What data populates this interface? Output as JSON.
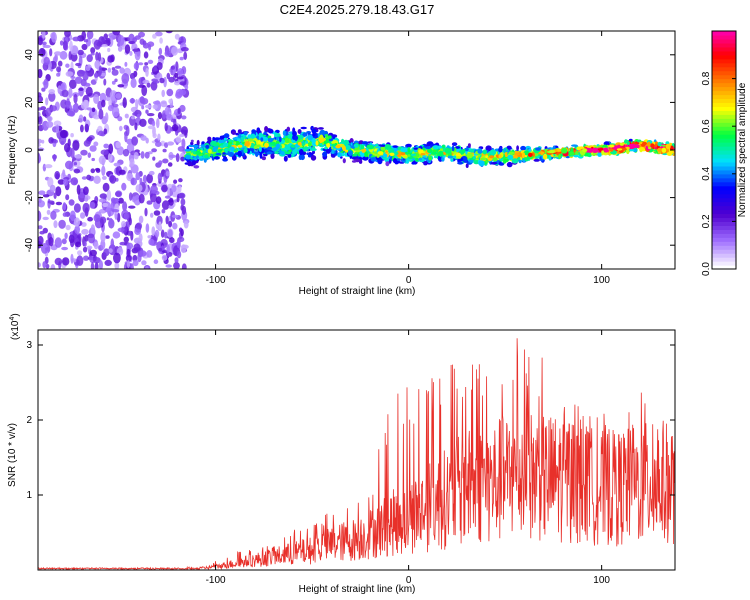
{
  "chart_data": [
    {
      "type": "heatmap",
      "title": "C2E4.2025.279.18.43.G17",
      "xlabel": "Height of straight line (km)",
      "ylabel": "Frequency (Hz)",
      "xlim": [
        -192,
        138
      ],
      "ylim": [
        -50,
        50
      ],
      "xticks": [
        -100,
        0,
        100
      ],
      "yticks": [
        -40,
        -20,
        0,
        20,
        40
      ],
      "colorbar": {
        "label": "Normalized spectral amplitude",
        "range": [
          0.0,
          1.0
        ],
        "ticks": [
          0.0,
          0.2,
          0.4,
          0.6,
          0.8
        ],
        "colors": [
          "#ffffff",
          "#a070ff",
          "#5000d0",
          "#0000ff",
          "#00e0ff",
          "#00ff40",
          "#ffff00",
          "#ff8000",
          "#ff0000",
          "#ff00c0"
        ]
      },
      "noise_region": {
        "x_range": [
          -192,
          -115
        ],
        "y_range": [
          -50,
          50
        ],
        "amplitude": [
          0.1,
          0.4
        ]
      },
      "signal_trace": {
        "x": [
          -115,
          -100,
          -80,
          -60,
          -45,
          -30,
          -15,
          0,
          20,
          40,
          60,
          80,
          100,
          120,
          138
        ],
        "center_freq": [
          -2,
          0,
          3,
          2,
          4,
          0,
          -1,
          -2,
          -1,
          -3,
          -2,
          -1,
          0,
          2,
          0
        ],
        "spread": [
          6,
          7,
          8,
          9,
          8,
          5,
          5,
          5,
          5,
          5,
          4,
          3,
          3,
          3,
          3
        ],
        "amplitude": [
          0.45,
          0.5,
          0.5,
          0.5,
          0.5,
          0.5,
          0.55,
          0.55,
          0.55,
          0.55,
          0.6,
          0.7,
          0.8,
          0.85,
          0.8
        ]
      }
    },
    {
      "type": "line",
      "title": "",
      "xlabel": "Height of straight line (km)",
      "ylabel": "SNR (10 * v/v)",
      "scale_note": "(x10",
      "scale_exp": "4",
      "xlim": [
        -192,
        138
      ],
      "ylim": [
        0,
        3.2
      ],
      "xticks": [
        -100,
        0,
        100
      ],
      "yticks": [
        1,
        2,
        3
      ],
      "series": [
        {
          "name": "SNR",
          "color": "#e8302a",
          "x": [
            -192,
            -130,
            -110,
            -100,
            -90,
            -80,
            -70,
            -60,
            -50,
            -40,
            -30,
            -20,
            -10,
            0,
            10,
            20,
            30,
            40,
            50,
            60,
            70,
            80,
            90,
            100,
            110,
            120,
            130,
            138
          ],
          "y": [
            0.0,
            0.0,
            0.02,
            0.05,
            0.1,
            0.15,
            0.2,
            0.25,
            0.3,
            0.4,
            0.45,
            0.55,
            0.7,
            0.8,
            0.95,
            1.1,
            1.25,
            1.3,
            1.4,
            1.45,
            1.4,
            1.4,
            1.3,
            1.25,
            1.25,
            1.3,
            1.35,
            1.3
          ],
          "peak_y": [
            0.0,
            0.0,
            0.05,
            0.12,
            0.25,
            0.3,
            0.35,
            0.55,
            0.6,
            0.8,
            0.85,
            1.1,
            2.3,
            2.5,
            2.7,
            2.8,
            2.9,
            3.0,
            3.1,
            3.2,
            2.8,
            2.3,
            2.2,
            2.1,
            2.0,
            2.5,
            2.0,
            1.9
          ]
        }
      ]
    }
  ]
}
